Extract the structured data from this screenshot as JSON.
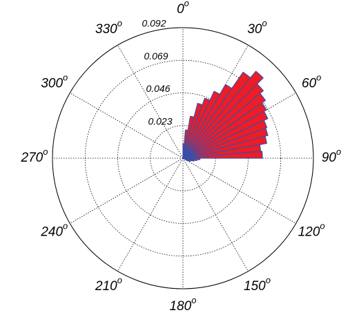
{
  "chart_data": {
    "type": "polar_histogram",
    "bins": [
      0,
      5,
      10,
      15,
      20,
      25,
      30,
      35,
      40,
      45,
      50,
      55,
      60,
      65,
      70,
      75,
      80,
      85,
      90,
      95,
      100,
      105,
      110,
      115,
      120
    ],
    "values": [
      0.01,
      0.02,
      0.03,
      0.04,
      0.045,
      0.052,
      0.06,
      0.074,
      0.08,
      0.074,
      0.071,
      0.068,
      0.066,
      0.063,
      0.062,
      0.06,
      0.055,
      0.056,
      0.012,
      0.01,
      0.008,
      0.006,
      0.005,
      0.004
    ],
    "color": "#ee1c25",
    "edge_color": "#3a4fa8",
    "rlim": [
      0,
      0.092
    ],
    "rticks": [
      0.023,
      0.046,
      0.069,
      0.092
    ],
    "thetaticks": [
      0,
      30,
      60,
      90,
      120,
      150,
      180,
      210,
      240,
      270,
      300,
      330
    ],
    "theta_tick_suffix": "o",
    "grid": true
  }
}
